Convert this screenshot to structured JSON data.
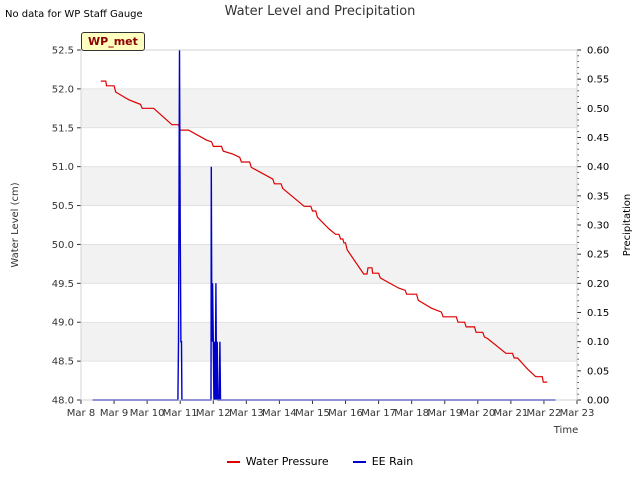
{
  "page": {
    "note": "No data for WP Staff Gauge",
    "site_label": "WP_met"
  },
  "chart_data": {
    "type": "line",
    "title": "Water Level and Precipitation",
    "xlabel": "Time",
    "ylabel": "Water Level (cm)",
    "y2label": "Precipitation",
    "xlim": [
      8,
      23
    ],
    "ylim": [
      48.0,
      52.5
    ],
    "y2lim": [
      0.0,
      0.6
    ],
    "x_ticks": [
      8,
      9,
      10,
      11,
      12,
      13,
      14,
      15,
      16,
      17,
      18,
      19,
      20,
      21,
      22,
      23
    ],
    "x_tick_labels": [
      "Mar 8",
      "Mar 9",
      "Mar 10",
      "Mar 11",
      "Mar 12",
      "Mar 13",
      "Mar 14",
      "Mar 15",
      "Mar 16",
      "Mar 17",
      "Mar 18",
      "Mar 19",
      "Mar 20",
      "Mar 21",
      "Mar 22",
      "Mar 23"
    ],
    "y_ticks": [
      "48.0",
      "48.5",
      "49.0",
      "49.5",
      "50.0",
      "50.5",
      "51.0",
      "51.5",
      "52.0",
      "52.5"
    ],
    "y2_ticks": [
      "0.00",
      "0.05",
      "0.10",
      "0.15",
      "0.20",
      "0.25",
      "0.30",
      "0.35",
      "0.40",
      "0.45",
      "0.50",
      "0.55",
      "0.60"
    ],
    "grid": "horizontal bands",
    "legend": "bottom",
    "series": [
      {
        "name": "Water Pressure",
        "axis": "left",
        "color": "#dd0000",
        "points": [
          [
            8.6,
            52.1
          ],
          [
            8.75,
            52.1
          ],
          [
            8.77,
            52.04
          ],
          [
            9.0,
            52.04
          ],
          [
            9.05,
            51.96
          ],
          [
            9.45,
            51.86
          ],
          [
            9.8,
            51.8
          ],
          [
            9.85,
            51.75
          ],
          [
            10.2,
            51.75
          ],
          [
            10.75,
            51.54
          ],
          [
            10.95,
            51.54
          ],
          [
            11.0,
            51.47
          ],
          [
            11.25,
            51.47
          ],
          [
            11.8,
            51.34
          ],
          [
            11.95,
            51.32
          ],
          [
            12.0,
            51.26
          ],
          [
            12.25,
            51.26
          ],
          [
            12.3,
            51.2
          ],
          [
            12.6,
            51.16
          ],
          [
            12.8,
            51.12
          ],
          [
            12.85,
            51.06
          ],
          [
            13.1,
            51.06
          ],
          [
            13.15,
            50.99
          ],
          [
            13.8,
            50.84
          ],
          [
            13.85,
            50.78
          ],
          [
            14.05,
            50.78
          ],
          [
            14.1,
            50.72
          ],
          [
            14.75,
            50.49
          ],
          [
            14.95,
            50.49
          ],
          [
            15.0,
            50.43
          ],
          [
            15.1,
            50.43
          ],
          [
            15.15,
            50.35
          ],
          [
            15.5,
            50.2
          ],
          [
            15.7,
            50.13
          ],
          [
            15.8,
            50.13
          ],
          [
            15.85,
            50.07
          ],
          [
            15.92,
            50.07
          ],
          [
            15.95,
            50.02
          ],
          [
            16.0,
            50.02
          ],
          [
            16.05,
            49.93
          ],
          [
            16.55,
            49.62
          ],
          [
            16.65,
            49.62
          ],
          [
            16.68,
            49.7
          ],
          [
            16.8,
            49.7
          ],
          [
            16.82,
            49.63
          ],
          [
            17.0,
            49.63
          ],
          [
            17.05,
            49.57
          ],
          [
            17.6,
            49.44
          ],
          [
            17.8,
            49.41
          ],
          [
            17.85,
            49.36
          ],
          [
            18.15,
            49.36
          ],
          [
            18.2,
            49.28
          ],
          [
            18.6,
            49.18
          ],
          [
            18.9,
            49.13
          ],
          [
            18.95,
            49.07
          ],
          [
            19.35,
            49.07
          ],
          [
            19.4,
            49.0
          ],
          [
            19.6,
            49.0
          ],
          [
            19.65,
            48.94
          ],
          [
            19.9,
            48.94
          ],
          [
            19.95,
            48.87
          ],
          [
            20.15,
            48.87
          ],
          [
            20.2,
            48.81
          ],
          [
            20.3,
            48.79
          ],
          [
            20.85,
            48.6
          ],
          [
            21.05,
            48.6
          ],
          [
            21.1,
            48.54
          ],
          [
            21.2,
            48.54
          ],
          [
            21.5,
            48.4
          ],
          [
            21.75,
            48.3
          ],
          [
            21.95,
            48.3
          ],
          [
            21.98,
            48.23
          ],
          [
            22.1,
            48.23
          ]
        ]
      },
      {
        "name": "EE Rain",
        "axis": "right",
        "color": "#0000cc",
        "points": [
          [
            8.35,
            0.0
          ],
          [
            10.93,
            0.0
          ],
          [
            10.95,
            0.1
          ],
          [
            10.96,
            0.3
          ],
          [
            10.98,
            0.6
          ],
          [
            11.0,
            0.3
          ],
          [
            11.02,
            0.1
          ],
          [
            11.04,
            0.1
          ],
          [
            11.05,
            0.0
          ],
          [
            11.93,
            0.0
          ],
          [
            11.94,
            0.4
          ],
          [
            11.96,
            0.1
          ],
          [
            11.98,
            0.2
          ],
          [
            12.0,
            0.1
          ],
          [
            12.02,
            0.0
          ],
          [
            12.04,
            0.1
          ],
          [
            12.06,
            0.0
          ],
          [
            12.08,
            0.2
          ],
          [
            12.1,
            0.0
          ],
          [
            12.12,
            0.1
          ],
          [
            12.14,
            0.0
          ],
          [
            12.18,
            0.0
          ],
          [
            12.2,
            0.1
          ],
          [
            12.22,
            0.0
          ],
          [
            22.35,
            0.0
          ]
        ]
      }
    ]
  }
}
